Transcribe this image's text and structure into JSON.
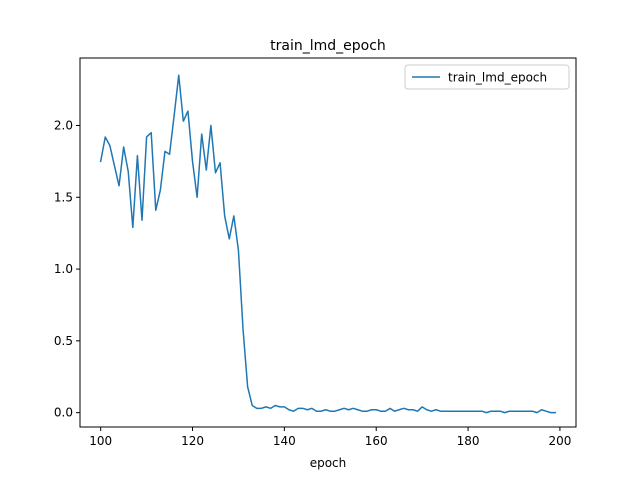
{
  "chart_data": {
    "type": "line",
    "title": "train_lmd_epoch",
    "xlabel": "epoch",
    "ylabel": "",
    "xlim": [
      95.5,
      203.5
    ],
    "ylim": [
      -0.1,
      2.47
    ],
    "xticks": [
      100,
      120,
      140,
      160,
      180,
      200
    ],
    "yticks": [
      0.0,
      0.5,
      1.0,
      1.5,
      2.0
    ],
    "xtick_labels": [
      "100",
      "120",
      "140",
      "160",
      "180",
      "200"
    ],
    "ytick_labels": [
      "0.0",
      "0.5",
      "1.0",
      "1.5",
      "2.0"
    ],
    "grid": false,
    "legend_position": "top-right",
    "series": [
      {
        "name": "train_lmd_epoch",
        "color": "#1f77b4",
        "x": [
          100,
          101,
          102,
          103,
          104,
          105,
          106,
          107,
          108,
          109,
          110,
          111,
          112,
          113,
          114,
          115,
          116,
          117,
          118,
          119,
          120,
          121,
          122,
          123,
          124,
          125,
          126,
          127,
          128,
          129,
          130,
          131,
          132,
          133,
          134,
          135,
          136,
          137,
          138,
          139,
          140,
          141,
          142,
          143,
          144,
          145,
          146,
          147,
          148,
          149,
          150,
          151,
          152,
          153,
          154,
          155,
          156,
          157,
          158,
          159,
          160,
          161,
          162,
          163,
          164,
          165,
          166,
          167,
          168,
          169,
          170,
          171,
          172,
          173,
          174,
          175,
          176,
          177,
          178,
          179,
          180,
          181,
          182,
          183,
          184,
          185,
          186,
          187,
          188,
          189,
          190,
          191,
          192,
          193,
          194,
          195,
          196,
          197,
          198,
          199
        ],
        "y": [
          1.75,
          1.92,
          1.86,
          1.72,
          1.58,
          1.85,
          1.68,
          1.29,
          1.79,
          1.34,
          1.92,
          1.95,
          1.41,
          1.55,
          1.82,
          1.8,
          2.07,
          2.35,
          2.03,
          2.1,
          1.75,
          1.5,
          1.94,
          1.69,
          2.0,
          1.67,
          1.74,
          1.37,
          1.21,
          1.37,
          1.13,
          0.58,
          0.18,
          0.05,
          0.03,
          0.03,
          0.04,
          0.03,
          0.05,
          0.04,
          0.04,
          0.02,
          0.01,
          0.03,
          0.03,
          0.02,
          0.03,
          0.01,
          0.01,
          0.02,
          0.01,
          0.01,
          0.02,
          0.03,
          0.02,
          0.03,
          0.02,
          0.01,
          0.01,
          0.02,
          0.02,
          0.01,
          0.01,
          0.03,
          0.01,
          0.02,
          0.03,
          0.02,
          0.02,
          0.01,
          0.04,
          0.02,
          0.01,
          0.02,
          0.01,
          0.01,
          0.01,
          0.01,
          0.01,
          0.01,
          0.01,
          0.01,
          0.01,
          0.01,
          0.0,
          0.01,
          0.01,
          0.01,
          0.0,
          0.01,
          0.01,
          0.01,
          0.01,
          0.01,
          0.01,
          0.0,
          0.02,
          0.01,
          0.0,
          0.0
        ]
      }
    ]
  }
}
